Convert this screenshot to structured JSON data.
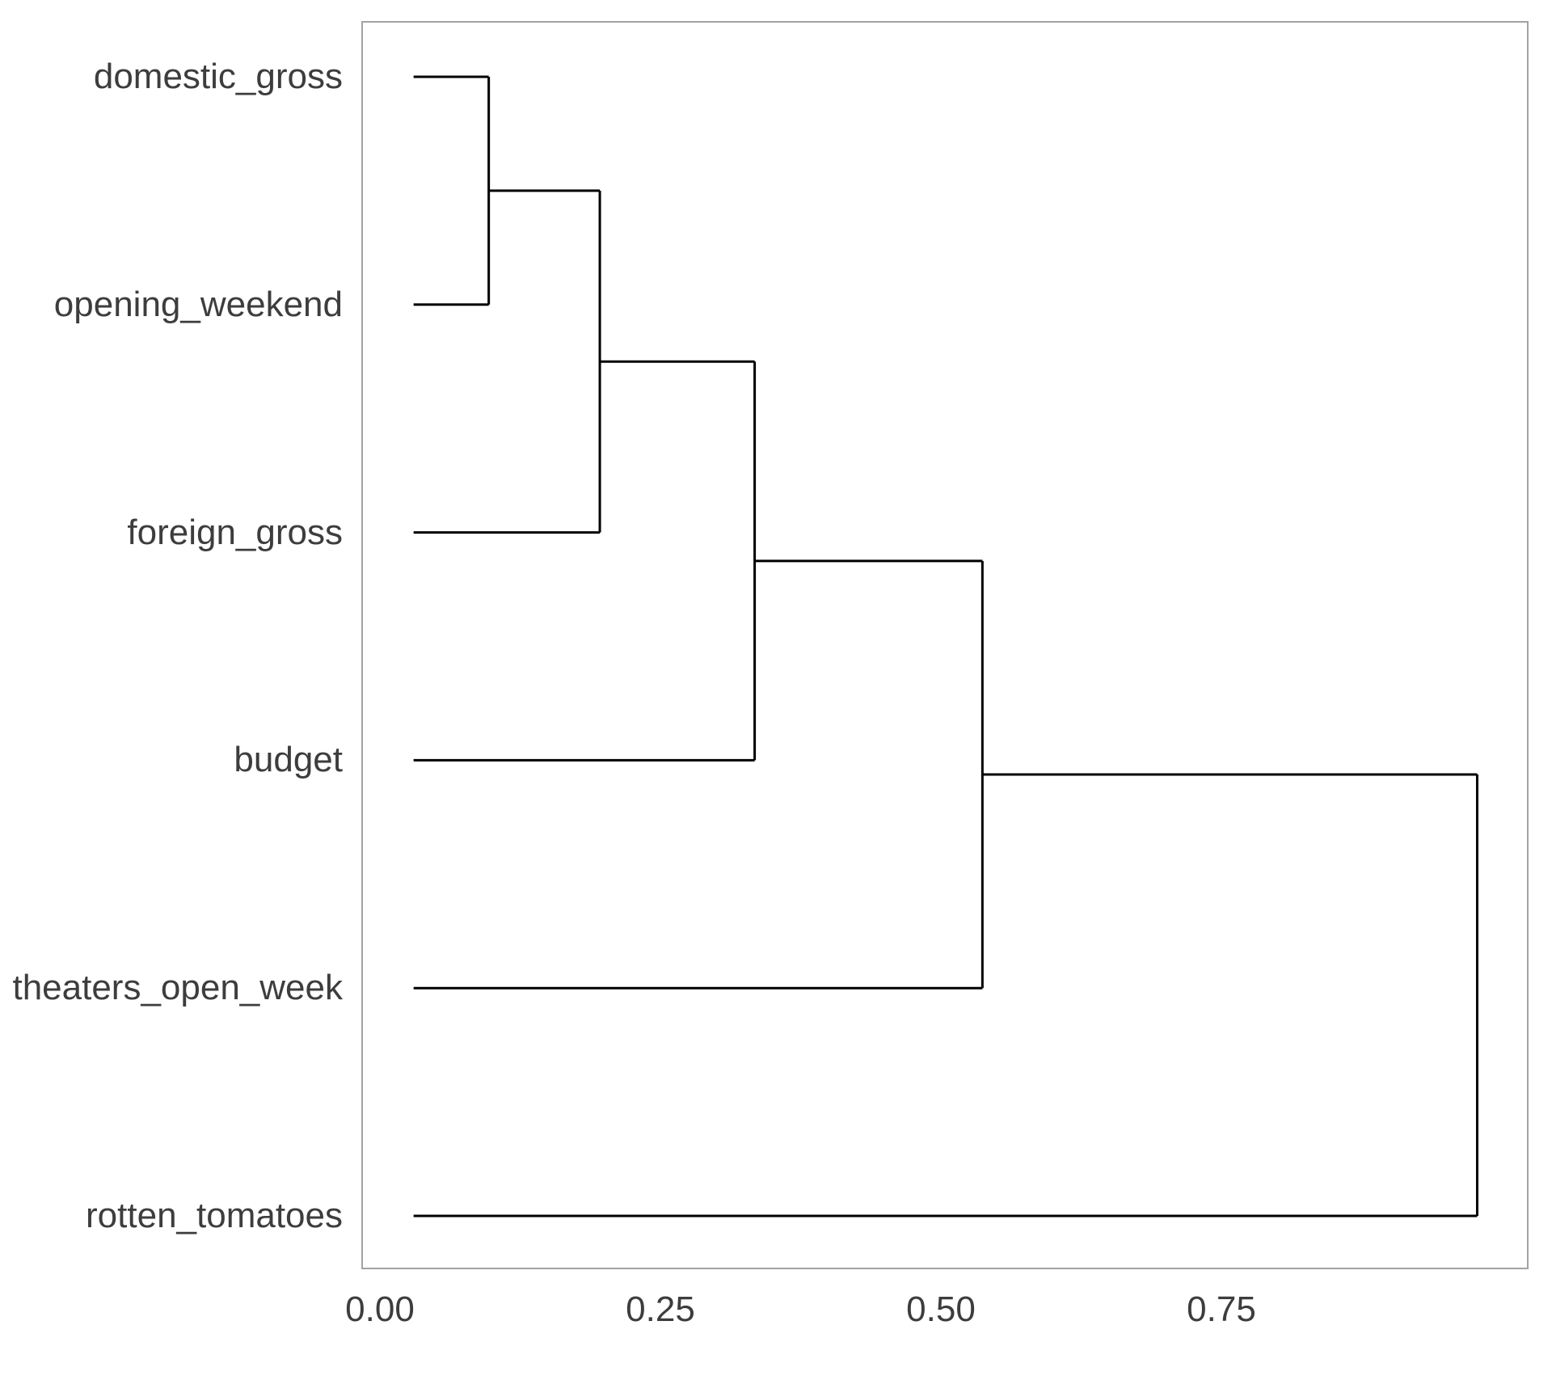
{
  "chart_data": {
    "type": "dendrogram",
    "orientation": "horizontal",
    "title": "",
    "leaves": [
      "domestic_gross",
      "opening_weekend",
      "foreign_gross",
      "budget",
      "theaters_open_week",
      "rotten_tomatoes"
    ],
    "leaf_start_height": 0.03,
    "merges": [
      {
        "id": "m1",
        "children": [
          "domestic_gross",
          "opening_weekend"
        ],
        "height": 0.097
      },
      {
        "id": "m2",
        "children": [
          "m1",
          "foreign_gross"
        ],
        "height": 0.196
      },
      {
        "id": "m3",
        "children": [
          "m2",
          "budget"
        ],
        "height": 0.334
      },
      {
        "id": "m4",
        "children": [
          "m3",
          "theaters_open_week"
        ],
        "height": 0.537
      },
      {
        "id": "m5",
        "children": [
          "m4",
          "rotten_tomatoes"
        ],
        "height": 0.978
      }
    ],
    "x_axis": {
      "tick_labels": [
        "0.00",
        "0.25",
        "0.50",
        "0.75"
      ],
      "tick_values": [
        0,
        0.25,
        0.5,
        0.75
      ],
      "range": [
        -0.018,
        1.026
      ],
      "grid": false
    },
    "colors": {
      "line": "#000000",
      "panel_border": "#a3a3a3",
      "text": "#3d3d3d",
      "background": "#ffffff"
    }
  }
}
